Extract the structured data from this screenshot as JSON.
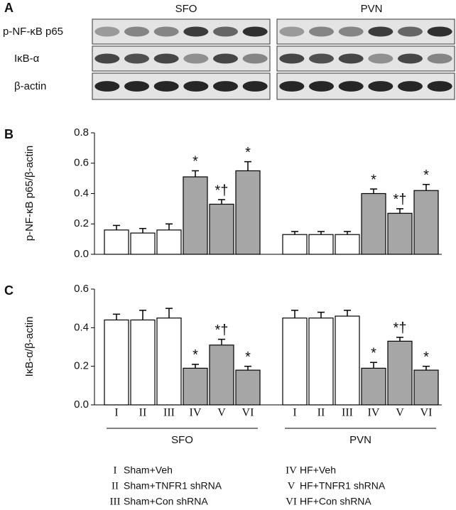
{
  "panel_labels": [
    "A",
    "B",
    "C"
  ],
  "blot": {
    "groups": [
      "SFO",
      "PVN"
    ],
    "rows": [
      "p-NF-κB p65",
      "IκB-α",
      "β-actin"
    ]
  },
  "chart_data": [
    {
      "type": "bar",
      "ylabel": "p-NF-κB p65/β-actin",
      "ylim": [
        0,
        0.8
      ],
      "yticks": [
        {
          "value": 0,
          "label": "0.0"
        },
        0.2,
        0.4,
        0.6,
        0.8
      ],
      "colors": [
        "#ffffff",
        "#ffffff",
        "#ffffff",
        "#a6a6a6",
        "#a6a6a6",
        "#a6a6a6"
      ],
      "series": [
        {
          "values": [
            0.16,
            0.14,
            0.16,
            0.51,
            0.33,
            0.55
          ],
          "errors": [
            0.03,
            0.03,
            0.04,
            0.04,
            0.03,
            0.06
          ],
          "annotations": [
            null,
            null,
            null,
            "*",
            "*†",
            "*"
          ]
        },
        {
          "values": [
            0.13,
            0.13,
            0.13,
            0.4,
            0.27,
            0.42
          ],
          "errors": [
            0.02,
            0.02,
            0.02,
            0.03,
            0.03,
            0.04
          ],
          "annotations": [
            null,
            null,
            null,
            "*",
            "*†",
            "*"
          ]
        }
      ]
    },
    {
      "type": "bar",
      "ylabel": "IκB-α/β-actin",
      "ylim": [
        0,
        0.6
      ],
      "yticks": [
        {
          "value": 0,
          "label": "0.0"
        },
        0.2,
        0.4,
        0.6
      ],
      "categories": [
        "I",
        "II",
        "III",
        "IV",
        "V",
        "VI"
      ],
      "groups": [
        "SFO",
        "PVN"
      ],
      "colors": [
        "#ffffff",
        "#ffffff",
        "#ffffff",
        "#a6a6a6",
        "#a6a6a6",
        "#a6a6a6"
      ],
      "series": [
        {
          "values": [
            0.44,
            0.44,
            0.45,
            0.19,
            0.31,
            0.18
          ],
          "errors": [
            0.03,
            0.05,
            0.05,
            0.02,
            0.03,
            0.02
          ],
          "annotations": [
            null,
            null,
            null,
            "*",
            "*†",
            "*"
          ]
        },
        {
          "values": [
            0.45,
            0.45,
            0.46,
            0.19,
            0.33,
            0.18
          ],
          "errors": [
            0.04,
            0.03,
            0.03,
            0.03,
            0.02,
            0.02
          ],
          "annotations": [
            null,
            null,
            null,
            "*",
            "*†",
            "*"
          ]
        }
      ]
    }
  ],
  "legend": [
    {
      "numeral": "I",
      "label": "Sham+Veh"
    },
    {
      "numeral": "II",
      "label": "Sham+TNFR1 shRNA"
    },
    {
      "numeral": "III",
      "label": "Sham+Con shRNA"
    },
    {
      "numeral": "IV",
      "label": "HF+Veh"
    },
    {
      "numeral": "V",
      "label": "HF+TNFR1 shRNA"
    },
    {
      "numeral": "VI",
      "label": "HF+Con shRNA"
    }
  ]
}
